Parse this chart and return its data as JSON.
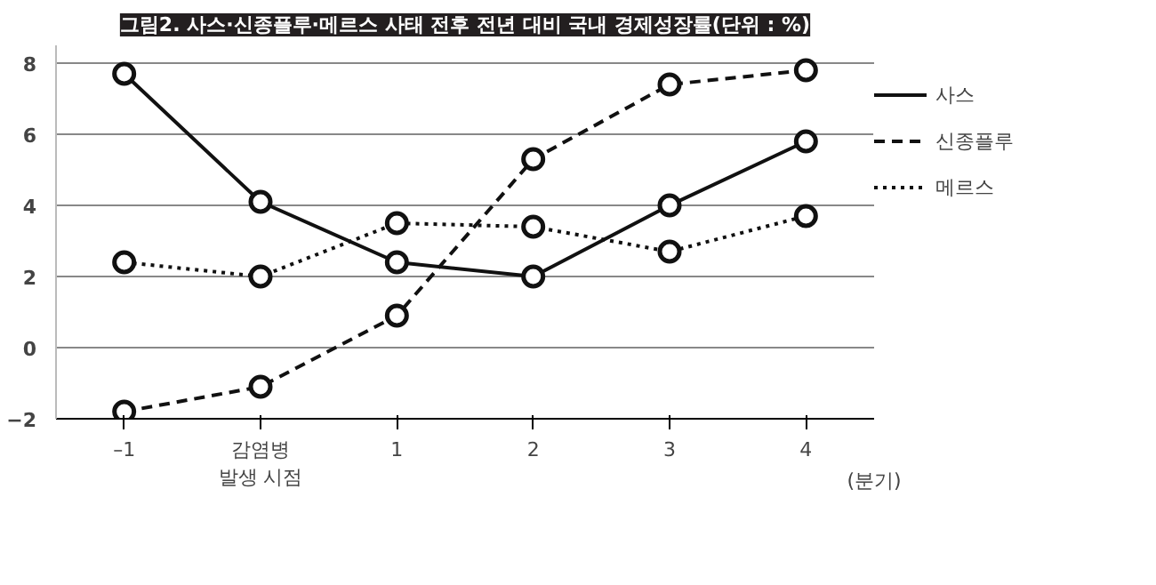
{
  "chart_data": {
    "type": "line",
    "title": "그림2. 사스·신종플루·메르스 사태 전후 전년 대비 국내 경제성장률(단위 : %)",
    "xlabel": "(분기)",
    "categories": [
      "–1",
      "감염병\n발생 시점",
      "1",
      "2",
      "3",
      "4"
    ],
    "series": [
      {
        "name": "사스",
        "color": "#111111",
        "line_style": "solid",
        "values": [
          7.7,
          4.1,
          2.4,
          2.0,
          4.0,
          5.8
        ]
      },
      {
        "name": "신종플루",
        "color": "#111111",
        "line_style": "dashed",
        "values": [
          -1.8,
          -1.1,
          0.9,
          5.3,
          7.4,
          7.8
        ]
      },
      {
        "name": "메르스",
        "color": "#111111",
        "line_style": "dotted",
        "values": [
          2.4,
          2.0,
          3.5,
          3.4,
          2.7,
          3.7
        ]
      }
    ],
    "ylim": [
      -2,
      8.5
    ],
    "yticks": [
      -2,
      0,
      2,
      4,
      6,
      8
    ],
    "grid": "y",
    "legend": "right",
    "marker": "circle"
  }
}
